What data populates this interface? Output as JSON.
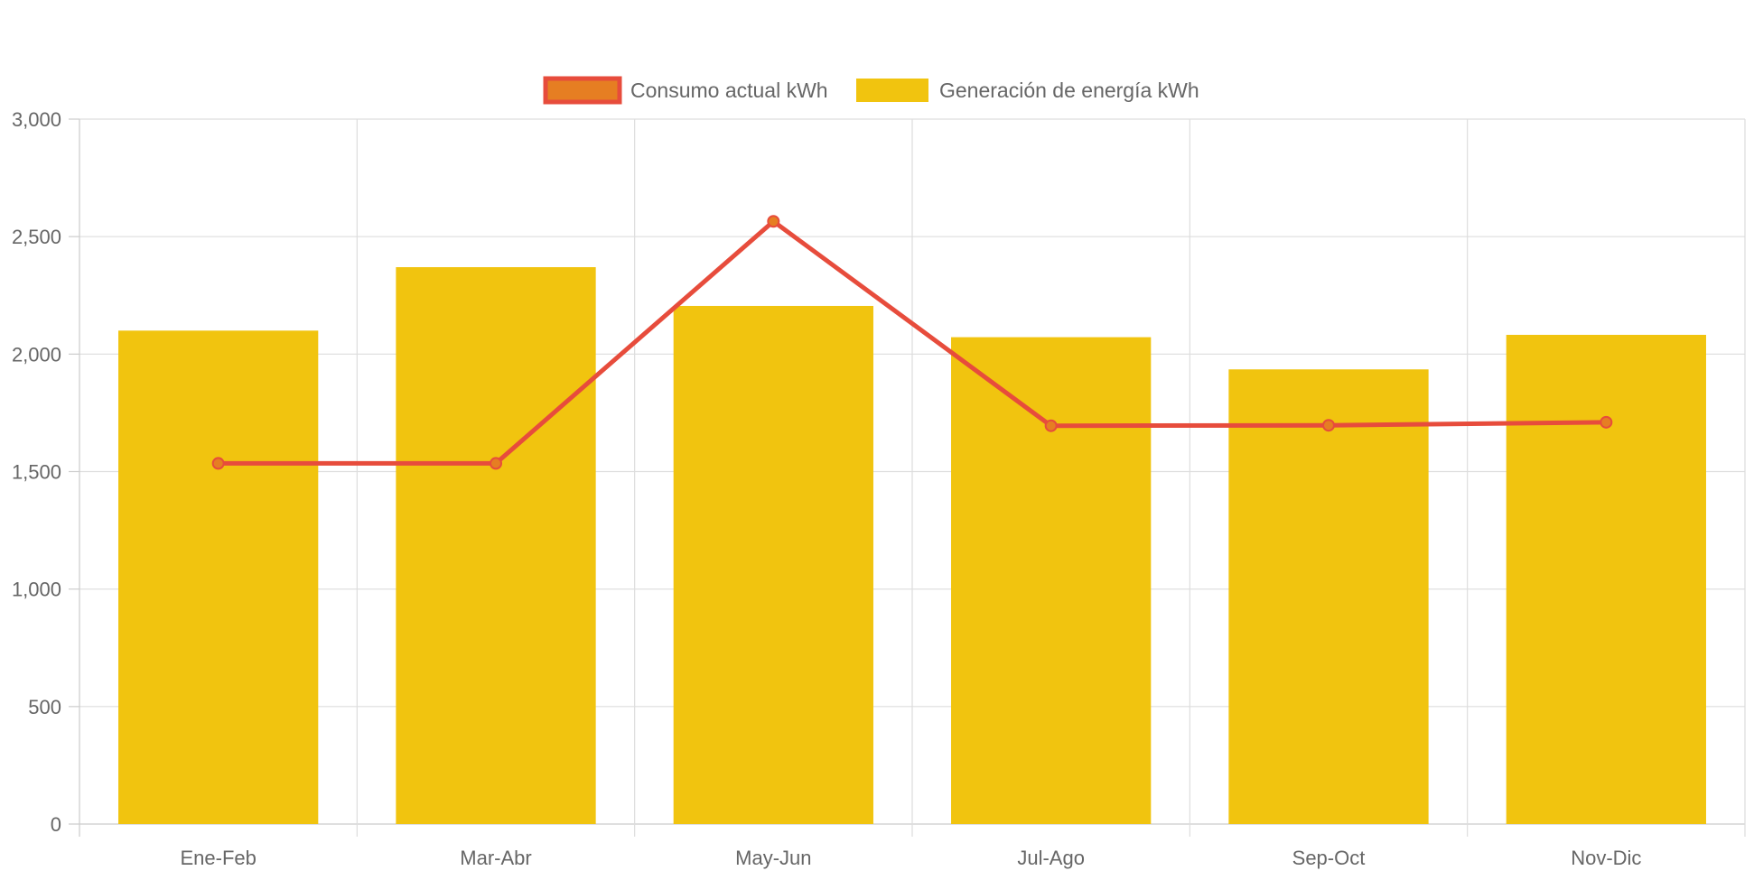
{
  "chart_data": {
    "type": "bar",
    "title": "",
    "xlabel": "",
    "ylabel": "",
    "categories": [
      "Ene-Feb",
      "Mar-Abr",
      "May-Jun",
      "Jul-Ago",
      "Sep-Oct",
      "Nov-Dic"
    ],
    "ylim": [
      0,
      3000
    ],
    "yticks": [
      0,
      500,
      1000,
      1500,
      2000,
      2500,
      3000
    ],
    "ytick_labels": [
      "0",
      "500",
      "1,000",
      "1,500",
      "2,000",
      "2,500",
      "3,000"
    ],
    "grid": true,
    "legend_position": "top-center",
    "series": [
      {
        "name": "Consumo actual kWh",
        "type": "line",
        "color": "#e74c3c",
        "point_color": "#e67e22",
        "values": [
          1535,
          1535,
          2565,
          1695,
          1697,
          1710
        ]
      },
      {
        "name": "Generación de energía kWh",
        "type": "bar",
        "color": "#f1c40f",
        "values": [
          2100,
          2370,
          2205,
          2072,
          1935,
          2082
        ]
      }
    ]
  }
}
